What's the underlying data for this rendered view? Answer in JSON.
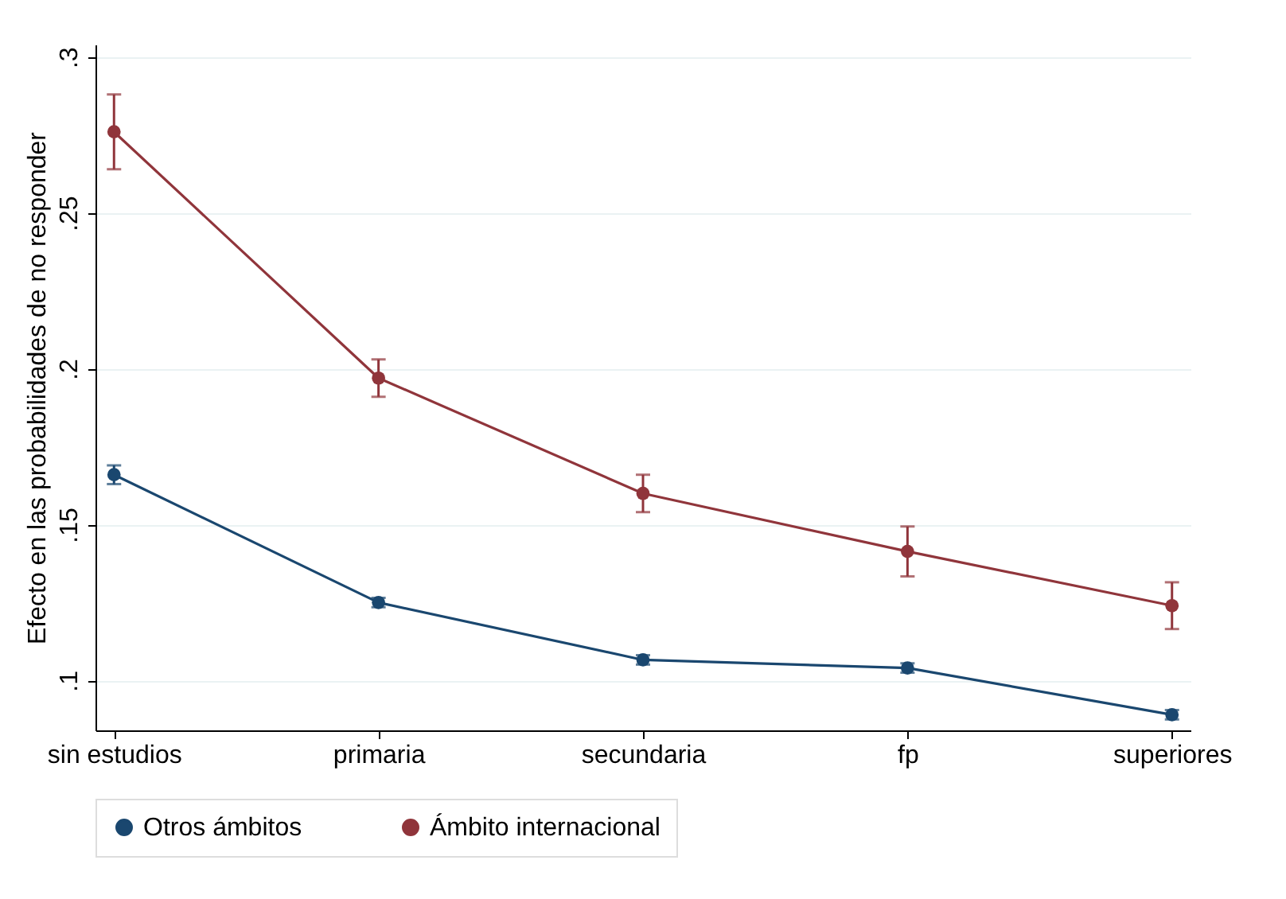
{
  "chart_data": {
    "type": "line",
    "categories": [
      "sin estudios",
      "primaria",
      "secundaria",
      "fp",
      "superiores"
    ],
    "ylabel": "Efecto en las probabilidades de no responder",
    "series": [
      {
        "name": "Otros ámbitos",
        "color": "#1a476f",
        "values": [
          0.166,
          0.125,
          0.1066,
          0.104,
          0.089
        ],
        "errors": [
          0.003,
          0.0015,
          0.0015,
          0.0015,
          0.0015
        ]
      },
      {
        "name": "Ámbito internacional",
        "color": "#90353b",
        "values": [
          0.276,
          0.197,
          0.16,
          0.1414,
          0.124
        ],
        "errors": [
          0.012,
          0.006,
          0.006,
          0.008,
          0.0075
        ]
      }
    ],
    "ylim": [
      0.084,
      0.304
    ],
    "yticks": [
      {
        "value": 0.1,
        "label": ".1"
      },
      {
        "value": 0.15,
        "label": ".15"
      },
      {
        "value": 0.2,
        "label": ".2"
      },
      {
        "value": 0.25,
        "label": ".25"
      },
      {
        "value": 0.3,
        "label": ".3"
      }
    ],
    "grid": "y",
    "legend": "bottom",
    "marker": "circle",
    "line_style": "solid"
  }
}
